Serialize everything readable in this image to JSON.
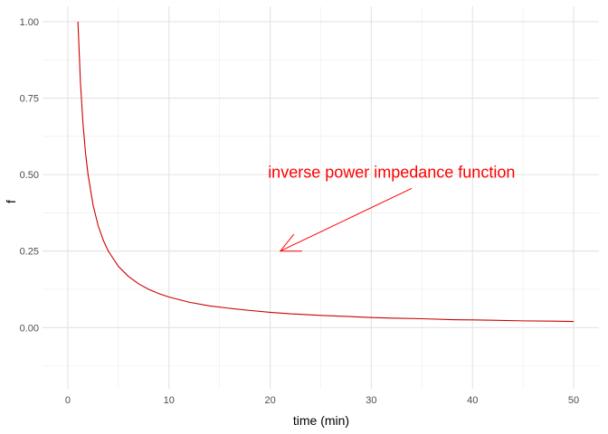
{
  "chart_data": {
    "type": "line",
    "title": "",
    "xlabel": "time (min)",
    "ylabel": "f",
    "xlim": [
      -2.5,
      52.5
    ],
    "ylim": [
      -0.2,
      1.05
    ],
    "x_ticks": [
      0,
      10,
      20,
      30,
      40,
      50
    ],
    "y_ticks": [
      0.0,
      0.25,
      0.5,
      0.75,
      1.0
    ],
    "x_tick_labels": [
      "0",
      "10",
      "20",
      "30",
      "40",
      "50"
    ],
    "y_tick_labels": [
      "0.00",
      "0.25",
      "0.50",
      "0.75",
      "1.00"
    ],
    "grid": true,
    "legend": "none",
    "series": [
      {
        "color": "#cc0000",
        "x": [
          1,
          1.25,
          1.5,
          1.75,
          2,
          2.5,
          3,
          3.5,
          4,
          5,
          6,
          7,
          8,
          9,
          10,
          12,
          14,
          16,
          18,
          20,
          22,
          25,
          28,
          30,
          32,
          35,
          38,
          40,
          42,
          45,
          48,
          50
        ],
        "y": [
          1.0,
          0.8,
          0.667,
          0.571,
          0.5,
          0.4,
          0.333,
          0.286,
          0.25,
          0.2,
          0.167,
          0.143,
          0.125,
          0.111,
          0.1,
          0.083,
          0.071,
          0.063,
          0.056,
          0.05,
          0.045,
          0.04,
          0.036,
          0.033,
          0.031,
          0.029,
          0.026,
          0.025,
          0.024,
          0.022,
          0.021,
          0.02
        ]
      }
    ],
    "annotation": {
      "text": "inverse power impedance function",
      "color": "#ff0000",
      "text_x": 32,
      "text_y": 0.49,
      "arrow_from": [
        34,
        0.455
      ],
      "arrow_to": [
        21,
        0.25
      ]
    }
  }
}
